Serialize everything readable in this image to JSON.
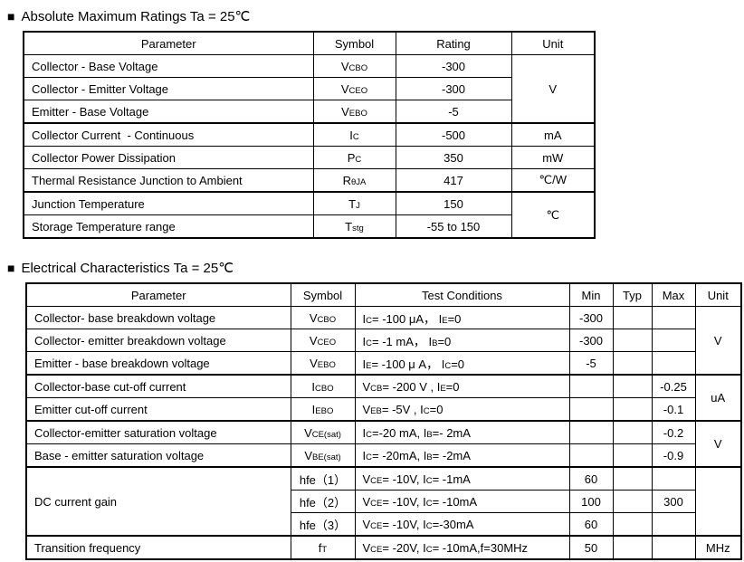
{
  "sections": [
    {
      "bullet": "■",
      "title": "Absolute Maximum Ratings Ta = 25℃",
      "table": {
        "headers": [
          "Parameter",
          "Symbol",
          "Rating",
          "Unit"
        ],
        "rows": [
          {
            "cells": [
              "Collector - Base Voltage",
              "V~CBO~",
              "-300",
              {
                "v": "V",
                "rs": 3
              }
            ]
          },
          {
            "cells": [
              "Collector - Emitter Voltage",
              "V~CEO~",
              "-300",
              null
            ]
          },
          {
            "cells": [
              "Emitter - Base Voltage",
              "V~EBO~",
              "-5",
              null
            ]
          },
          {
            "group": true,
            "cells": [
              "Collector Current  - Continuous",
              "I~C~",
              "-500",
              "mA"
            ]
          },
          {
            "cells": [
              "Collector Power Dissipation",
              "P~C~",
              "350",
              "mW"
            ]
          },
          {
            "cells": [
              "Thermal Resistance Junction to Ambient",
              "R~θJA~",
              "417",
              "℃/W"
            ]
          },
          {
            "group": true,
            "cells": [
              "Junction Temperature",
              "T~J~",
              "150",
              {
                "v": "℃",
                "rs": 2
              }
            ]
          },
          {
            "cells": [
              "Storage Temperature range",
              "T~stg~",
              "-55 to 150",
              null
            ]
          }
        ]
      }
    },
    {
      "bullet": "■",
      "title": "Electrical Characteristics Ta = 25℃",
      "table": {
        "headers": [
          "Parameter",
          "Symbol",
          "Test Conditions",
          "Min",
          "Typ",
          "Max",
          "Unit"
        ],
        "rows": [
          {
            "cells": [
              "Collector- base breakdown voltage",
              "V~CBO~",
              "I~C~= -100 μA， I~E~=0",
              "-300",
              "",
              "",
              {
                "v": "V",
                "rs": 3
              }
            ]
          },
          {
            "cells": [
              "Collector- emitter breakdown voltage",
              "V~CEO~",
              "I~C~= -1 mA， I~B~=0",
              "-300",
              "",
              "",
              null
            ]
          },
          {
            "cells": [
              "Emitter - base breakdown voltage",
              "V~EBO~",
              "I~E~= -100 μ A， I~C~=0",
              "-5",
              "",
              "",
              null
            ]
          },
          {
            "group": true,
            "cells": [
              "Collector-base cut-off current",
              "I~CBO~",
              "V~CB~= -200 V , I~E~=0",
              "",
              "",
              "-0.25",
              {
                "v": "uA",
                "rs": 2
              }
            ]
          },
          {
            "cells": [
              "Emitter cut-off current",
              "I~EBO~",
              "V~EB~= -5V , I~C~=0",
              "",
              "",
              "-0.1",
              null
            ]
          },
          {
            "group": true,
            "cells": [
              "Collector-emitter saturation voltage",
              "V~CE(sat)~",
              "I~C~=-20 mA, I~B~=- 2mA",
              "",
              "",
              "-0.2",
              {
                "v": "V",
                "rs": 2
              }
            ]
          },
          {
            "cells": [
              "Base - emitter saturation voltage",
              "V~BE(sat)~",
              "I~C~= -20mA, I~B~= -2mA",
              "",
              "",
              "-0.9",
              null
            ]
          },
          {
            "group": true,
            "cells": [
              {
                "v": "DC current gain",
                "rs": 3
              },
              "hfe（1）",
              "V~CE~= -10V, I~C~= -1mA",
              "60",
              "",
              "",
              {
                "v": "",
                "rs": 3
              }
            ]
          },
          {
            "cells": [
              null,
              "hfe（2）",
              "V~CE~= -10V, I~C~= -10mA",
              "100",
              "",
              "300",
              null
            ]
          },
          {
            "cells": [
              null,
              "hfe（3）",
              "V~CE~= -10V, I~C~=-30mA",
              "60",
              "",
              "",
              null
            ]
          },
          {
            "group": true,
            "cells": [
              "Transition frequency",
              "f~T~",
              "V~CE~= -20V, I~C~= -10mA,f=30MHz",
              "50",
              "",
              "",
              "MHz"
            ]
          }
        ]
      }
    }
  ]
}
